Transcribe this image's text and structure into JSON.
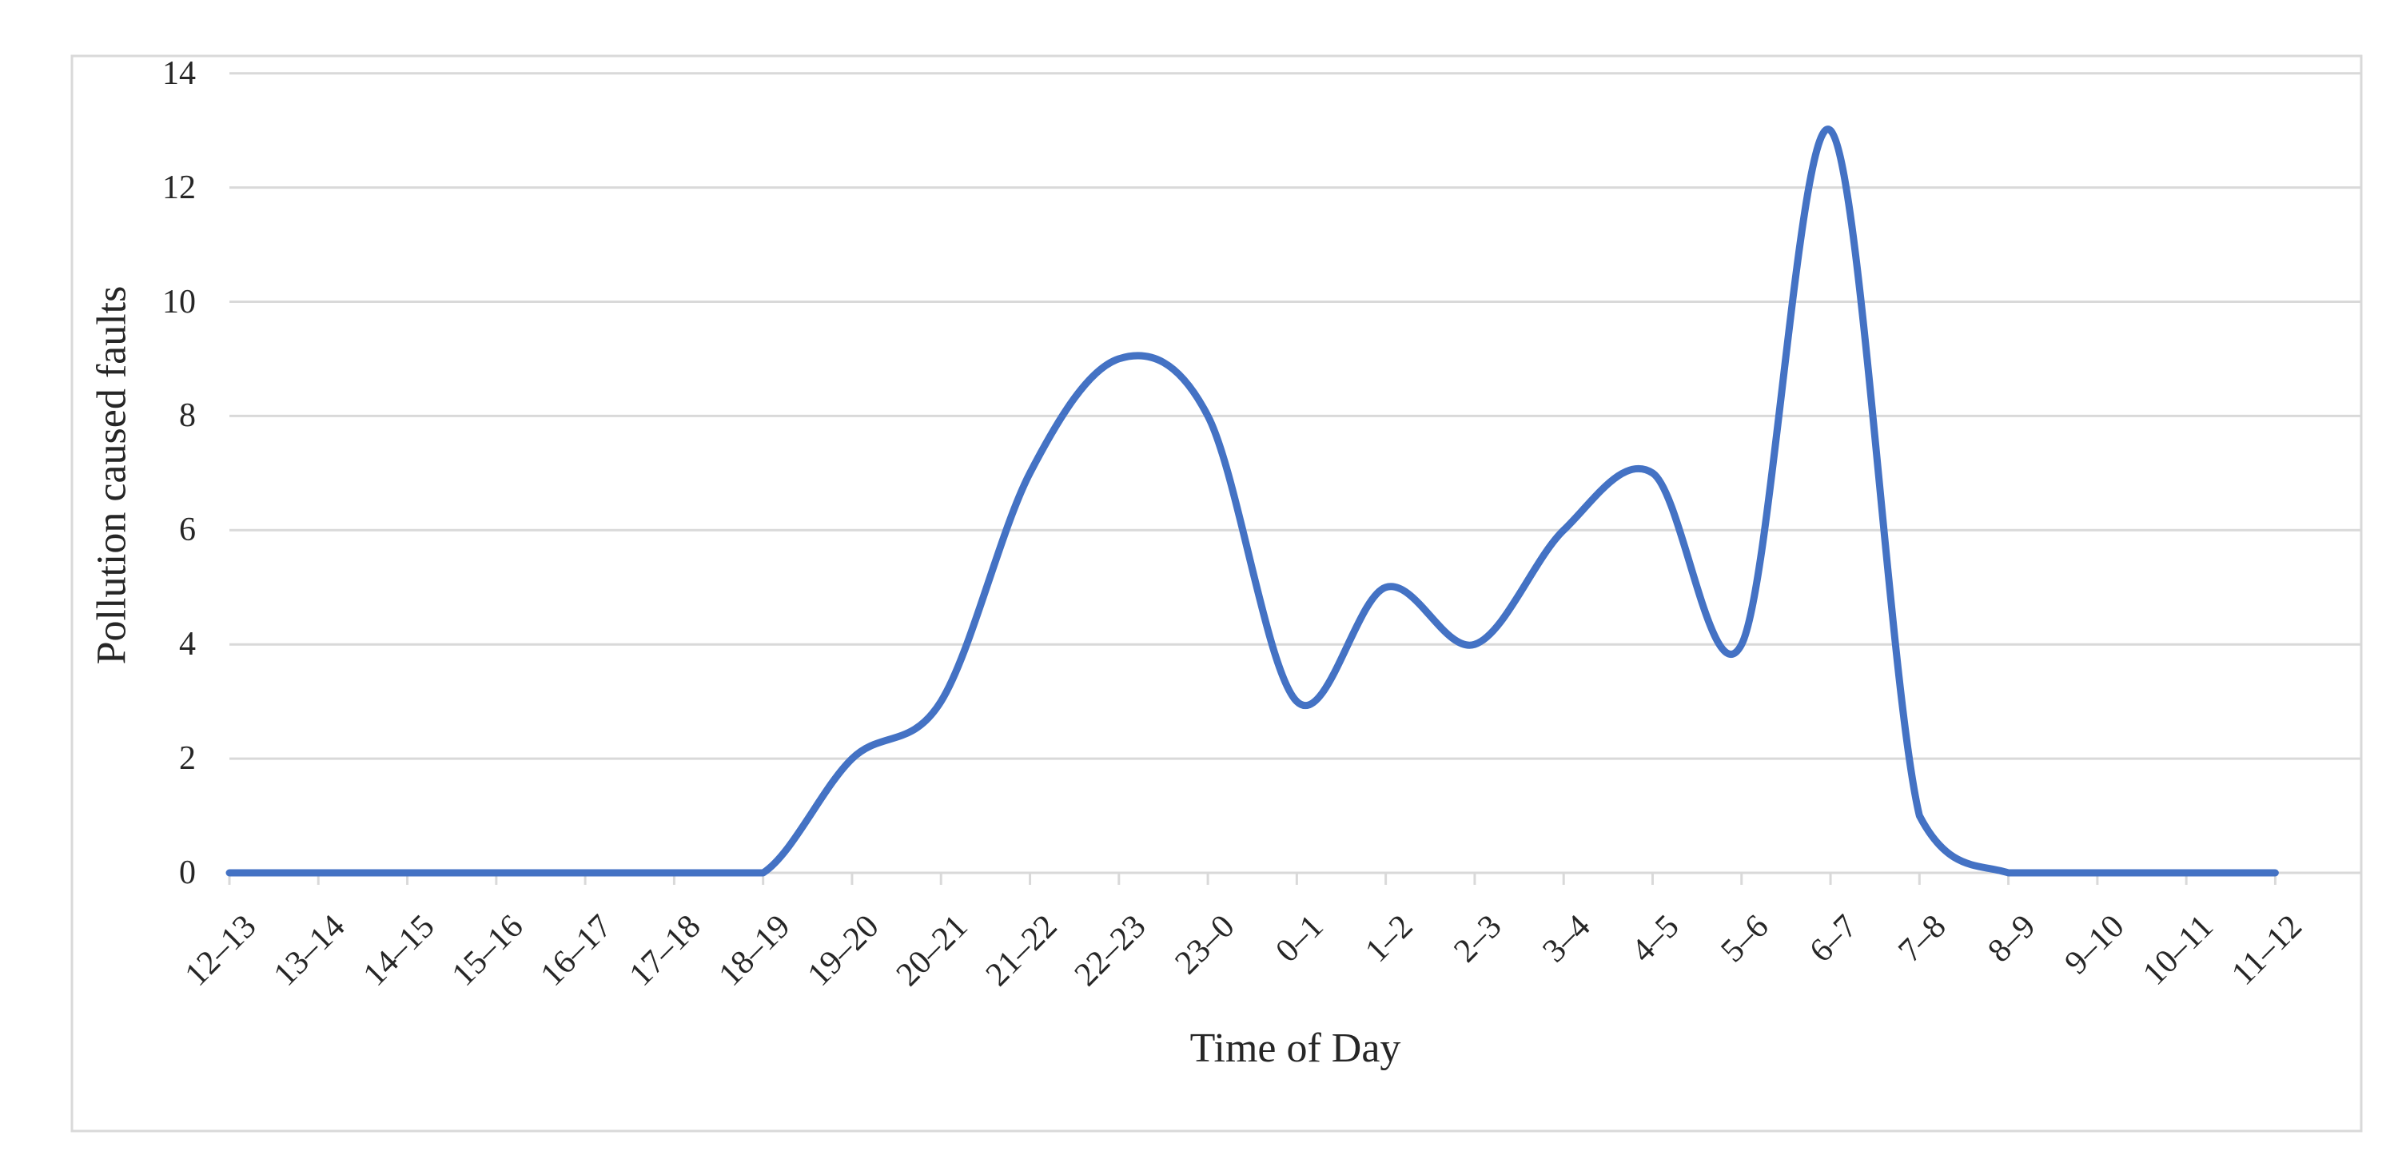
{
  "chart_data": {
    "type": "line",
    "title": "",
    "xlabel": "Time of Day",
    "ylabel": "Pollution caused faults",
    "categories": [
      "12–13",
      "13–14",
      "14–15",
      "15–16",
      "16–17",
      "17–18",
      "18–19",
      "19–20",
      "20–21",
      "21–22",
      "22–23",
      "23–0",
      "0–1",
      "1–2",
      "2–3",
      "3–4",
      "4–5",
      "5–6",
      "6–7",
      "7–8",
      "8–9",
      "9–10",
      "10–11",
      "11–12"
    ],
    "values": [
      0,
      0,
      0,
      0,
      0,
      0,
      0,
      2,
      3,
      7,
      9,
      8,
      3,
      5,
      4,
      6,
      7,
      4,
      13,
      1,
      0,
      0,
      0,
      0
    ],
    "ylim": [
      0,
      14
    ],
    "ytick_labels": [
      "0",
      "2",
      "4",
      "6",
      "8",
      "10",
      "12",
      "14"
    ],
    "xtick_rotation_deg": 45,
    "grid": true,
    "legend": "none",
    "smooth": true,
    "line_color": "#4472C4",
    "gridline_color": "#D9D9D9",
    "border_color": "#D9D9D9",
    "axis_text_color": "#262626",
    "background": "#FFFFFF"
  }
}
